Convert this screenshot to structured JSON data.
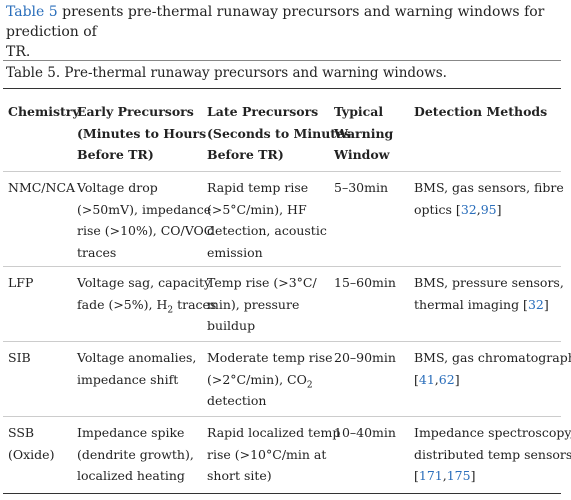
{
  "intro": {
    "link_text": "Table 5",
    "rest_line1": " presents pre-thermal runaway precursors and warning windows for prediction of",
    "rest_line2": "TR."
  },
  "caption": "Table 5. Pre-thermal runaway precursors and warning windows.",
  "colors": {
    "link": "#2a6ebb",
    "text": "#222222",
    "rule": "#333333"
  },
  "headers": {
    "chemistry": [
      "Chemistry"
    ],
    "early": [
      "Early Precursors",
      "(Minutes to Hours",
      "Before TR)"
    ],
    "late": [
      "Late Precursors",
      "(Seconds to Minutes",
      "Before TR)"
    ],
    "window": [
      "Typical",
      "Warning",
      "Window"
    ],
    "methods": [
      "Detection Methods"
    ]
  },
  "rows": [
    {
      "chemistry": [
        "NMC/NCA"
      ],
      "early": [
        "Voltage drop",
        "(>50mV), impedance",
        "rise (>10%), CO/VOC",
        "traces"
      ],
      "late": [
        "Rapid temp rise",
        "(>5°C/min), HF",
        "detection, acoustic",
        "emission"
      ],
      "window": "5–30min",
      "methods_l1": "BMS, gas sensors, fibre",
      "methods_l2_pre": "optics [",
      "ref_a": "32",
      "sep": ",",
      "ref_b": "95",
      "methods_l2_post": "]"
    },
    {
      "chemistry": [
        "LFP"
      ],
      "early_l1": "Voltage sag, capacity",
      "early_l2_pre": "fade (>5%), H",
      "early_l2_sub": "2",
      "early_l2_post": " traces",
      "late": [
        "Temp rise (>3°C/",
        "min), pressure",
        "buildup"
      ],
      "window": "15–60min",
      "methods_l1": "BMS, pressure sensors,",
      "methods_l2_pre": "thermal imaging [",
      "ref_a": "32",
      "methods_l2_post": "]"
    },
    {
      "chemistry": [
        "SIB"
      ],
      "early": [
        "Voltage anomalies,",
        "impedance shift"
      ],
      "late_l1": "Moderate temp rise",
      "late_l2_pre": "(>2°C/min), CO",
      "late_l2_sub": "2",
      "late_l3": "detection",
      "window": "20–90min",
      "methods_l1": "BMS, gas chromatography",
      "methods_l2_pre": "[",
      "ref_a": "41",
      "sep": ",",
      "ref_b": "62",
      "methods_l2_post": "]"
    },
    {
      "chemistry": [
        "SSB",
        "(Oxide)"
      ],
      "early": [
        "Impedance spike",
        "(dendrite growth),",
        "localized heating"
      ],
      "late": [
        "Rapid localized temp",
        "rise (>10°C/min at",
        "short site)"
      ],
      "window": "10–40min",
      "methods_l1": "Impedance spectroscopy,",
      "methods_l2": "distributed temp sensors",
      "methods_l3_pre": "[",
      "ref_a": "171",
      "sep": ",",
      "ref_b": "175",
      "methods_l3_post": "]"
    }
  ]
}
